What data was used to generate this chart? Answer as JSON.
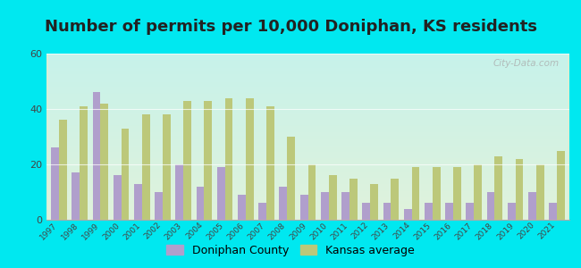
{
  "title": "Number of permits per 10,000 Doniphan, KS residents",
  "years": [
    1997,
    1998,
    1999,
    2000,
    2001,
    2002,
    2003,
    2004,
    2005,
    2006,
    2007,
    2008,
    2009,
    2010,
    2011,
    2012,
    2013,
    2014,
    2015,
    2016,
    2017,
    2018,
    2019,
    2020,
    2021
  ],
  "doniphan": [
    26,
    17,
    46,
    16,
    13,
    10,
    20,
    12,
    19,
    9,
    6,
    12,
    9,
    10,
    10,
    6,
    6,
    4,
    6,
    6,
    6,
    10,
    6,
    10,
    6
  ],
  "kansas": [
    36,
    41,
    42,
    33,
    38,
    38,
    43,
    43,
    44,
    44,
    41,
    30,
    20,
    16,
    15,
    13,
    15,
    19,
    19,
    19,
    20,
    23,
    22,
    20,
    25
  ],
  "doniphan_color": "#b09fcc",
  "kansas_color": "#bcc87a",
  "bg_outer": "#00e8f0",
  "ylim": [
    0,
    60
  ],
  "yticks": [
    0,
    20,
    40,
    60
  ],
  "bar_width": 0.38,
  "watermark": "City-Data.com",
  "legend_doniphan": "Doniphan County",
  "legend_kansas": "Kansas average",
  "title_fontsize": 13,
  "title_color": "#222222"
}
